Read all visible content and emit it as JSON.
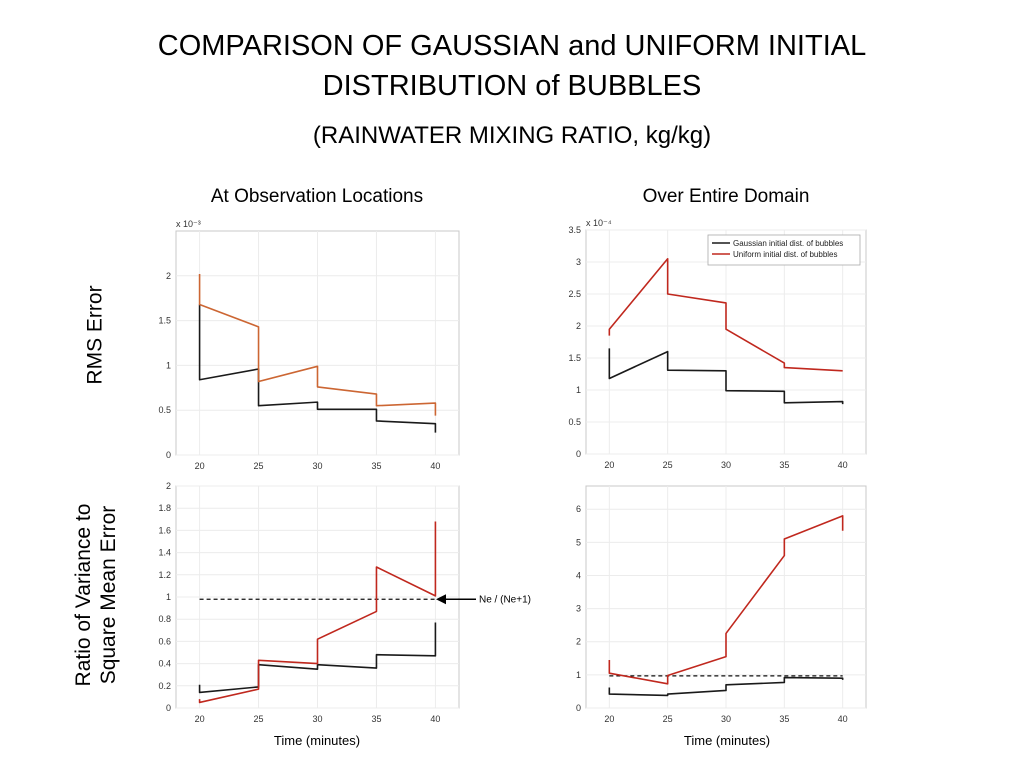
{
  "title_line1": "COMPARISON OF GAUSSIAN and UNIFORM INITIAL",
  "title_line2": "DISTRIBUTION of BUBBLES",
  "subtitle": "(RAINWATER MIXING RATIO, kg/kg)",
  "col_left": "At Observation Locations",
  "col_right": "Over Entire Domain",
  "row_top": "RMS Error",
  "row_bottom_line1": "Ratio of Variance to",
  "row_bottom_line2": "Square Mean Error",
  "xlabel_left": "Time (minutes)",
  "xlabel_right": "Time (minutes)",
  "annotation": "Ne / (Ne+1)",
  "colors": {
    "gaussian": "#1a1a1a",
    "uniform": "#c0281e",
    "uniform_obs": "#cc6633"
  },
  "chart_data": [
    {
      "id": "rms_obs",
      "type": "line",
      "title": "At Observation Locations",
      "ylabel": "RMS Error",
      "xlabel": "",
      "exponent": "x 10⁻³",
      "xlim": [
        18,
        42
      ],
      "ylim": [
        0,
        2.5
      ],
      "xticks": [
        20,
        25,
        30,
        35,
        40
      ],
      "yticks": [
        0,
        0.5,
        1,
        1.5,
        2
      ],
      "ytick_labels": [
        "0",
        "0.5",
        "1",
        "1.5",
        "2"
      ],
      "grid": true,
      "series": [
        {
          "color": "#1a1a1a",
          "x": [
            20,
            20,
            25,
            25,
            30,
            30,
            35,
            35,
            40,
            40
          ],
          "y": [
            1.68,
            0.84,
            0.96,
            0.55,
            0.59,
            0.51,
            0.51,
            0.38,
            0.35,
            0.25
          ]
        },
        {
          "color": "#cc6633",
          "x": [
            20,
            20,
            25,
            25,
            30,
            30,
            35,
            35,
            40,
            40
          ],
          "y": [
            2.02,
            1.68,
            1.43,
            0.82,
            0.99,
            0.76,
            0.68,
            0.55,
            0.58,
            0.44
          ]
        }
      ]
    },
    {
      "id": "rms_domain",
      "type": "line",
      "title": "Over Entire Domain",
      "ylabel": "",
      "xlabel": "",
      "exponent": "x 10⁻⁴",
      "xlim": [
        18,
        42
      ],
      "ylim": [
        0,
        3.5
      ],
      "xticks": [
        20,
        25,
        30,
        35,
        40
      ],
      "yticks": [
        0,
        0.5,
        1,
        1.5,
        2,
        2.5,
        3,
        3.5
      ],
      "ytick_labels": [
        "0",
        "0.5",
        "1",
        "1.5",
        "2",
        "2.5",
        "3",
        "3.5"
      ],
      "grid": true,
      "legend_position": "top-right",
      "series": [
        {
          "name": "Gaussian initial dist. of bubbles",
          "color": "#1a1a1a",
          "x": [
            20,
            20,
            25,
            25,
            30,
            30,
            35,
            35,
            40,
            40
          ],
          "y": [
            1.65,
            1.18,
            1.6,
            1.31,
            1.3,
            0.99,
            0.98,
            0.8,
            0.82,
            0.78
          ]
        },
        {
          "name": "Uniform initial dist. of bubbles",
          "color": "#c0281e",
          "x": [
            20,
            20,
            25,
            25,
            30,
            30,
            35,
            35,
            40
          ],
          "y": [
            1.85,
            1.95,
            3.05,
            2.5,
            2.36,
            1.95,
            1.42,
            1.35,
            1.3
          ]
        }
      ]
    },
    {
      "id": "ratio_obs",
      "type": "line",
      "title": "",
      "ylabel": "Ratio of Variance to Square Mean Error",
      "xlabel": "Time (minutes)",
      "xlim": [
        18,
        42
      ],
      "ylim": [
        0,
        2
      ],
      "xticks": [
        20,
        25,
        30,
        35,
        40
      ],
      "yticks": [
        0,
        0.2,
        0.4,
        0.6,
        0.8,
        1,
        1.2,
        1.4,
        1.6,
        1.8,
        2
      ],
      "ytick_labels": [
        "0",
        "0.2",
        "0.4",
        "0.6",
        "0.8",
        "1",
        "1.2",
        "1.4",
        "1.6",
        "1.8",
        "2"
      ],
      "grid": true,
      "reference_line": {
        "y": 0.98,
        "x": [
          20,
          40
        ],
        "label": "Ne / (Ne+1)"
      },
      "series": [
        {
          "color": "#1a1a1a",
          "x": [
            20,
            20,
            25,
            25,
            30,
            30,
            35,
            35,
            40,
            40
          ],
          "y": [
            0.21,
            0.14,
            0.19,
            0.39,
            0.35,
            0.39,
            0.36,
            0.48,
            0.47,
            0.77
          ]
        },
        {
          "color": "#c0281e",
          "x": [
            20,
            20,
            25,
            25,
            30,
            30,
            35,
            35,
            40,
            40
          ],
          "y": [
            0.08,
            0.05,
            0.17,
            0.43,
            0.4,
            0.62,
            0.87,
            1.27,
            1.01,
            1.68
          ]
        }
      ]
    },
    {
      "id": "ratio_domain",
      "type": "line",
      "title": "",
      "ylabel": "",
      "xlabel": "Time (minutes)",
      "xlim": [
        18,
        42
      ],
      "ylim": [
        0,
        6.7
      ],
      "xticks": [
        20,
        25,
        30,
        35,
        40
      ],
      "yticks": [
        0,
        1,
        2,
        3,
        4,
        5,
        6
      ],
      "ytick_labels": [
        "0",
        "1",
        "2",
        "3",
        "4",
        "5",
        "6"
      ],
      "grid": true,
      "reference_line": {
        "y": 0.97,
        "x": [
          20,
          40
        ],
        "label": ""
      },
      "series": [
        {
          "color": "#1a1a1a",
          "x": [
            20,
            20,
            25,
            25,
            30,
            30,
            35,
            35,
            40,
            40
          ],
          "y": [
            0.62,
            0.42,
            0.38,
            0.42,
            0.53,
            0.7,
            0.77,
            0.92,
            0.9,
            0.85
          ]
        },
        {
          "color": "#c0281e",
          "x": [
            20,
            20,
            25,
            25,
            30,
            30,
            35,
            35,
            40,
            40
          ],
          "y": [
            1.45,
            1.05,
            0.73,
            0.98,
            1.55,
            2.25,
            4.6,
            5.1,
            5.8,
            5.35
          ]
        }
      ]
    }
  ]
}
